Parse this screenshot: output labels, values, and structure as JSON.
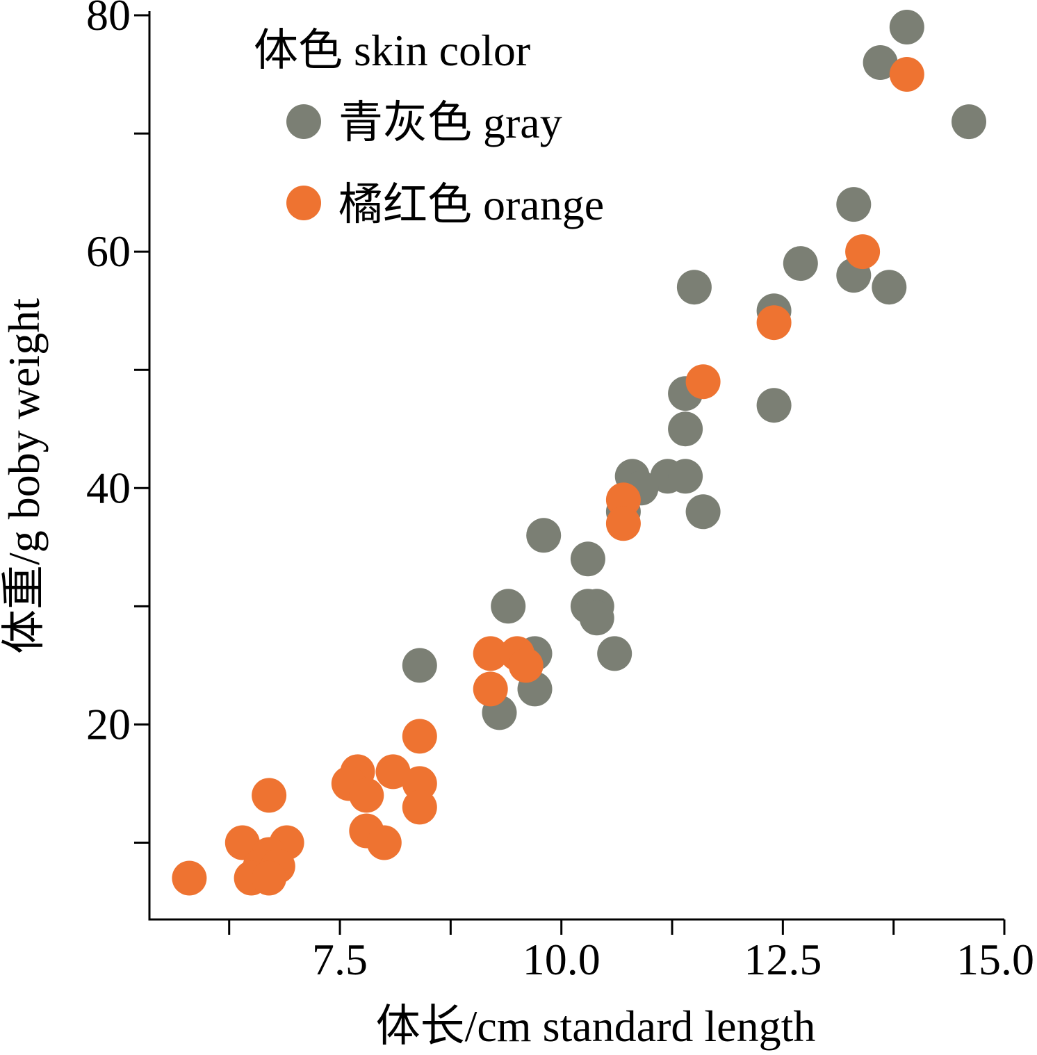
{
  "chart_data": {
    "type": "scatter",
    "xlabel": "体长/cm standard length",
    "ylabel": "体重/g boby weight",
    "xlim": [
      5.35,
      15.0
    ],
    "ylim": [
      3.5,
      80
    ],
    "x_major_ticks": [
      7.5,
      10.0,
      12.5,
      15.0
    ],
    "x_tick_labels": [
      "7.5",
      "10.0",
      "12.5",
      "15.0"
    ],
    "x_minor_ticks": [
      6.25,
      8.75,
      11.25,
      13.75
    ],
    "y_major_ticks": [
      20,
      40,
      60,
      80
    ],
    "y_tick_labels": [
      "20",
      "40",
      "60",
      "80"
    ],
    "y_minor_ticks": [
      10,
      30,
      50,
      70
    ],
    "grid": false,
    "legend": {
      "title": "体色 skin color",
      "placement": "top-left"
    },
    "series": [
      {
        "name": "青灰色 gray",
        "color": "#7b7f74",
        "points": [
          [
            13.9,
            79
          ],
          [
            13.6,
            76
          ],
          [
            14.6,
            71
          ],
          [
            13.3,
            64
          ],
          [
            12.7,
            59
          ],
          [
            13.3,
            58
          ],
          [
            13.7,
            57
          ],
          [
            11.5,
            57
          ],
          [
            12.4,
            55
          ],
          [
            11.4,
            48
          ],
          [
            12.4,
            47
          ],
          [
            11.4,
            45
          ],
          [
            10.8,
            41
          ],
          [
            11.2,
            41
          ],
          [
            11.4,
            41
          ],
          [
            10.9,
            40
          ],
          [
            11.6,
            38
          ],
          [
            10.7,
            38
          ],
          [
            9.8,
            36
          ],
          [
            10.3,
            34
          ],
          [
            9.4,
            30
          ],
          [
            10.3,
            30
          ],
          [
            10.4,
            30
          ],
          [
            10.4,
            29
          ],
          [
            10.6,
            26
          ],
          [
            9.7,
            26
          ],
          [
            8.4,
            25
          ],
          [
            9.7,
            23
          ],
          [
            9.3,
            21
          ]
        ]
      },
      {
        "name": "橘红色 orange",
        "color": "#ee7331",
        "points": [
          [
            13.9,
            75
          ],
          [
            13.4,
            60
          ],
          [
            12.4,
            54
          ],
          [
            11.6,
            49
          ],
          [
            10.7,
            39
          ],
          [
            10.7,
            37
          ],
          [
            9.2,
            26
          ],
          [
            9.5,
            26
          ],
          [
            9.6,
            25
          ],
          [
            9.2,
            23
          ],
          [
            8.4,
            19
          ],
          [
            7.7,
            16
          ],
          [
            8.1,
            16
          ],
          [
            7.6,
            15
          ],
          [
            8.4,
            15
          ],
          [
            7.8,
            14
          ],
          [
            6.7,
            14
          ],
          [
            8.4,
            13
          ],
          [
            7.8,
            11
          ],
          [
            6.4,
            10
          ],
          [
            6.9,
            10
          ],
          [
            8.0,
            10
          ],
          [
            6.7,
            9
          ],
          [
            6.6,
            8
          ],
          [
            6.8,
            8
          ],
          [
            6.5,
            7
          ],
          [
            6.7,
            7
          ],
          [
            5.8,
            7
          ]
        ]
      }
    ]
  }
}
